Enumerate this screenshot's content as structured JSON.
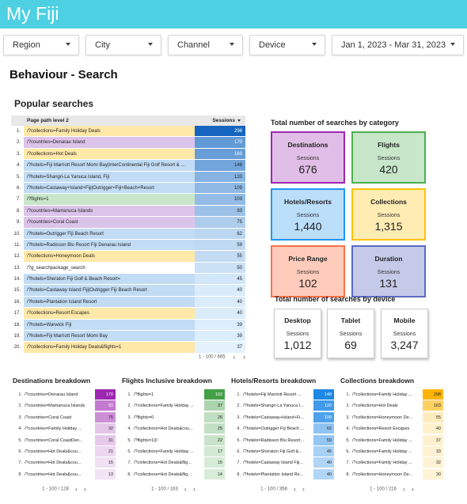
{
  "header": {
    "title": "My Fiji"
  },
  "filters": [
    {
      "label": "Region"
    },
    {
      "label": "City"
    },
    {
      "label": "Channel"
    },
    {
      "label": "Device"
    },
    {
      "label": "Jan 1, 2023 - Mar 31, 2023"
    }
  ],
  "page_title": "Behaviour - Search",
  "popular": {
    "title": "Popular searches",
    "col_path": "Page path level 2",
    "col_sessions": "Sessions",
    "pagination": "1 - 100 / 665",
    "rows": [
      {
        "idx": "1.",
        "path": "/?collections=Family Holiday Deals",
        "value": "298",
        "cat": "collections"
      },
      {
        "idx": "2.",
        "path": "/?countries=Denarau Island",
        "value": "170",
        "cat": "countries"
      },
      {
        "idx": "3.",
        "path": "/?collections=Hot Deals",
        "value": "163",
        "cat": "collections"
      },
      {
        "idx": "4.",
        "path": "/?hotels=Fiji Marriott Resort Momi Bay|InterContinental Fiji Golf Resort & ...",
        "value": "148",
        "cat": "hotels"
      },
      {
        "idx": "5.",
        "path": "/?hotels=Shangri-La Yanuca Island, Fiji",
        "value": "120",
        "cat": "hotels"
      },
      {
        "idx": "6.",
        "path": "/?hotels=Castaway+Island+Fiji|Outrigger+Fiji+Beach+Resort",
        "value": "109",
        "cat": "hotels"
      },
      {
        "idx": "7.",
        "path": "/?flights=1",
        "value": "103",
        "cat": "flights"
      },
      {
        "idx": "8.",
        "path": "/?countries=Mamanuca Islands",
        "value": "93",
        "cat": "countries"
      },
      {
        "idx": "9.",
        "path": "/?countries=Coral Coast",
        "value": "75",
        "cat": "countries"
      },
      {
        "idx": "10.",
        "path": "/?hotels=Outrigger Fiji Beach Resort",
        "value": "62",
        "cat": "hotels"
      },
      {
        "idx": "11.",
        "path": "/?hotels=Radisson Blu Resort Fiji Denarau Island",
        "value": "59",
        "cat": "hotels"
      },
      {
        "idx": "12.",
        "path": "/?collections=Honeymoon Deals",
        "value": "55",
        "cat": "collections"
      },
      {
        "idx": "13.",
        "path": "/?g_searchpackage_search",
        "value": "50",
        "cat": "other"
      },
      {
        "idx": "14.",
        "path": "/?hotels=Sheraton Fiji Golf & Beach Resort=",
        "value": "45",
        "cat": "hotels"
      },
      {
        "idx": "15.",
        "path": "/?hotels=Castaway Island Fiji|Outrigger Fiji Beach Resort",
        "value": "40",
        "cat": "hotels"
      },
      {
        "idx": "16.",
        "path": "/?hotels=Plantation Island Resort",
        "value": "40",
        "cat": "hotels"
      },
      {
        "idx": "17.",
        "path": "/?collections=Resort Escapes",
        "value": "40",
        "cat": "collections"
      },
      {
        "idx": "18.",
        "path": "/?hotels=Warwick Fiji",
        "value": "39",
        "cat": "hotels"
      },
      {
        "idx": "19.",
        "path": "/?hotels=Fiji Marriott Resort Momi Bay",
        "value": "39",
        "cat": "hotels"
      },
      {
        "idx": "20.",
        "path": "/?collections=Family Holiday Deals&flights=1",
        "value": "37",
        "cat": "collections"
      }
    ]
  },
  "category_title": "Total number of searches by category",
  "categories": [
    {
      "title": "Destinations",
      "sub": "Sessions",
      "value": "676",
      "bg": "#e1bee7",
      "border": "#9c27b0"
    },
    {
      "title": "Flights",
      "sub": "Sessions",
      "value": "420",
      "bg": "#c8e6c9",
      "border": "#4caf50"
    },
    {
      "title": "Hotels/Resorts",
      "sub": "Sessions",
      "value": "1,440",
      "bg": "#bbdefb",
      "border": "#2196f3"
    },
    {
      "title": "Collections",
      "sub": "Sessions",
      "value": "1,315",
      "bg": "#ffecb3",
      "border": "#ffc107"
    },
    {
      "title": "Price Range",
      "sub": "Sessions",
      "value": "102",
      "bg": "#ffccbc",
      "border": "#ff7043"
    },
    {
      "title": "Duration",
      "sub": "Sessions",
      "value": "131",
      "bg": "#c5cae9",
      "border": "#5c6bc0"
    }
  ],
  "device_title": "Total number of searches by device",
  "devices": [
    {
      "title": "Desktop",
      "sub": "Sessions",
      "value": "1,012"
    },
    {
      "title": "Tablet",
      "sub": "Sessions",
      "value": "69"
    },
    {
      "title": "Mobile",
      "sub": "Sessions",
      "value": "3,247"
    }
  ],
  "breakdowns": [
    {
      "title": "Destinations breakdown",
      "pagination": "1 - 100 / 128",
      "color": "#9c27b0",
      "max": 170,
      "rows": [
        {
          "idx": "1.",
          "path": "/?countries=Denarau Island",
          "value": "170"
        },
        {
          "idx": "2.",
          "path": "/?countries=Mamanuca Islands",
          "value": "93"
        },
        {
          "idx": "3.",
          "path": "/?countries=Coral Coast",
          "value": "75"
        },
        {
          "idx": "4.",
          "path": "/?countries=Family Holiday ...",
          "value": "32"
        },
        {
          "idx": "5.",
          "path": "/?countries=Coral CoastDen...",
          "value": "31"
        },
        {
          "idx": "6.",
          "path": "/?countries=Hot Deals&cou...",
          "value": "21"
        },
        {
          "idx": "7.",
          "path": "/?countries=Hot Deals&cou...",
          "value": "15"
        },
        {
          "idx": "8.",
          "path": "/?countries=Hot Deals&cou...",
          "value": "13"
        }
      ]
    },
    {
      "title": "Flights Inclusive breakdown",
      "pagination": "1 - 100 / 163",
      "color": "#43a047",
      "max": 103,
      "rows": [
        {
          "idx": "1.",
          "path": "/?flights=1",
          "value": "103"
        },
        {
          "idx": "2.",
          "path": "/?collections=Family Holiday ...",
          "value": "37"
        },
        {
          "idx": "3.",
          "path": "/?flights=0",
          "value": "26"
        },
        {
          "idx": "4.",
          "path": "/?collections=Hot Deals&cou...",
          "value": "25"
        },
        {
          "idx": "5.",
          "path": "/?flights=1|0",
          "value": "22"
        },
        {
          "idx": "6.",
          "path": "/?collections=Family Holiday ...",
          "value": "17"
        },
        {
          "idx": "7.",
          "path": "/?collections=Hot Deals&flig...",
          "value": "15"
        },
        {
          "idx": "8.",
          "path": "/?collections=Hot Deals&flig...",
          "value": "14"
        }
      ]
    },
    {
      "title": "Hotels/Resorts breakdown",
      "pagination": "1 - 100 / 358",
      "color": "#1e88e5",
      "max": 148,
      "rows": [
        {
          "idx": "1.",
          "path": "/?hotels=Fiji Marriott Resort ...",
          "value": "148"
        },
        {
          "idx": "2.",
          "path": "/?hotels=Shangri-La Yanuca I...",
          "value": "120"
        },
        {
          "idx": "3.",
          "path": "/?hotels=Castaway+Island+Fi...",
          "value": "109"
        },
        {
          "idx": "4.",
          "path": "/?hotels=Outrigger Fiji Beach ...",
          "value": "62"
        },
        {
          "idx": "5.",
          "path": "/?hotels=Radisson Blu Resort...",
          "value": "59"
        },
        {
          "idx": "6.",
          "path": "/?hotels=Sheraton Fiji Golf &...",
          "value": "45"
        },
        {
          "idx": "7.",
          "path": "/?hotels=Castaway Island Fiji...",
          "value": "40"
        },
        {
          "idx": "8.",
          "path": "/?hotels=Plantation Island Re...",
          "value": "40"
        }
      ]
    },
    {
      "title": "Collections breakdown",
      "pagination": "1 - 100 / 216",
      "color": "#ffb300",
      "max": 298,
      "rows": [
        {
          "idx": "1.",
          "path": "/?collections=Family Holiday ...",
          "value": "298"
        },
        {
          "idx": "2.",
          "path": "/?collections=Hot Deals",
          "value": "163"
        },
        {
          "idx": "3.",
          "path": "/?collections=Honeymoon De...",
          "value": "55"
        },
        {
          "idx": "4.",
          "path": "/?collections=Resort Escapes",
          "value": "40"
        },
        {
          "idx": "5.",
          "path": "/?collections=Family Holiday ...",
          "value": "37"
        },
        {
          "idx": "6.",
          "path": "/?collections=Family Holiday ...",
          "value": "33"
        },
        {
          "idx": "7.",
          "path": "/?collections=Family Holiday ...",
          "value": "32"
        },
        {
          "idx": "8.",
          "path": "/?collections=Honeymoon De...",
          "value": "30"
        }
      ]
    }
  ],
  "colors": {
    "header": "#4dd0e1",
    "collections": "#ffe8a8",
    "countries": "#dcc3ea",
    "hotels": "#c2dcf5",
    "flights": "#c8e6c9",
    "other": "#ffffff",
    "heat_max": "#1565c0",
    "heat_min": "#e3f2fd"
  },
  "icons": {
    "dropdown": "caret-down-icon",
    "prev": "chevron-left-icon",
    "next": "chevron-right-icon",
    "sort": "sort-desc-icon"
  },
  "pager_prev": "‹",
  "pager_next": "›"
}
